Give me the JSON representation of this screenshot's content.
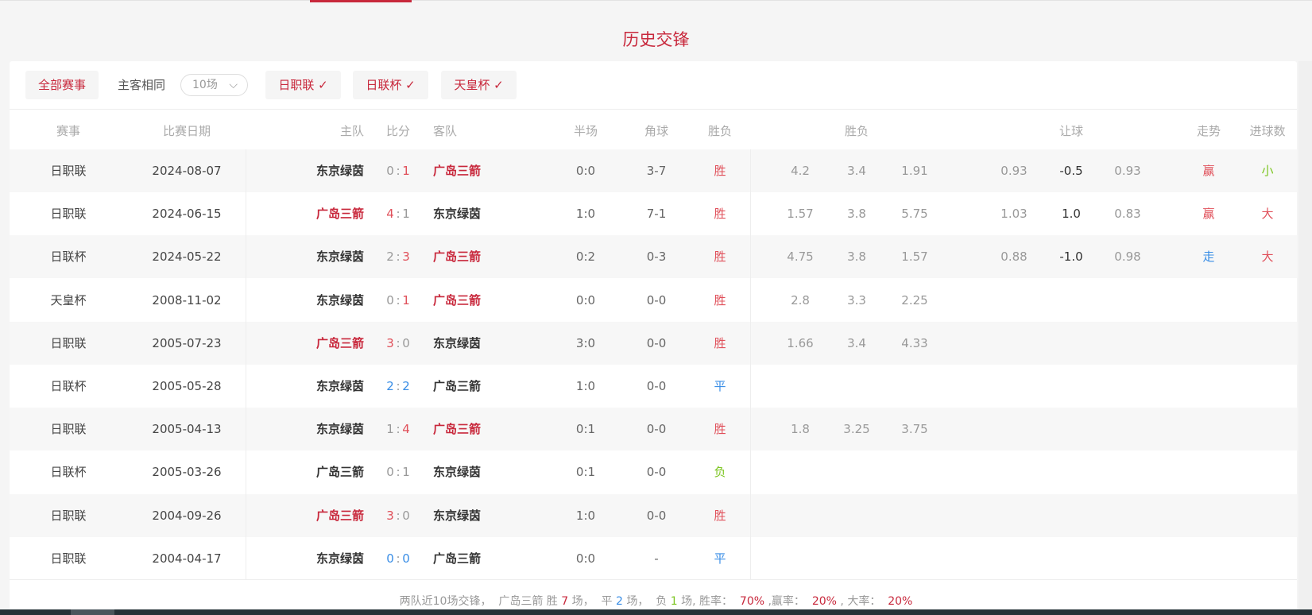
{
  "title": "历史交锋",
  "colors": {
    "red": "#c8283c",
    "win": "#e0505a",
    "blue": "#3a8ee6",
    "green": "#7cc520",
    "dark": "#333333",
    "gray": "#999999"
  },
  "filters": {
    "all": "全部赛事",
    "same_home_away": "主客相同",
    "count_select": "10场",
    "chips": [
      "日职联",
      "日联杯",
      "天皇杯"
    ],
    "check_icon": "✓",
    "chevron_icon": "⌵"
  },
  "headers": {
    "league": "赛事",
    "date": "比赛日期",
    "home": "主队",
    "score": "比分",
    "away": "客队",
    "half": "半场",
    "corner": "角球",
    "result": "胜负",
    "odds": "胜负",
    "handicap": "让球",
    "trend": "走势",
    "goals": "进球数"
  },
  "rows": [
    {
      "league": "日职联",
      "date": "2024-08-07",
      "home": "东京绿茵",
      "hs": "0",
      "as": "1",
      "away": "广岛三箭",
      "half": "0:0",
      "corner": "3-7",
      "res": "胜",
      "o1": "4.2",
      "o2": "3.4",
      "o3": "1.91",
      "h1": "0.93",
      "h2": "-0.5",
      "h3": "0.93",
      "trend": "赢",
      "goals": "小",
      "homeC": "dark",
      "awayC": "red",
      "hsC": "gray",
      "asC": "win",
      "resC": "win",
      "trendC": "win",
      "goalsC": "green"
    },
    {
      "league": "日职联",
      "date": "2024-06-15",
      "home": "广岛三箭",
      "hs": "4",
      "as": "1",
      "away": "东京绿茵",
      "half": "1:0",
      "corner": "7-1",
      "res": "胜",
      "o1": "1.57",
      "o2": "3.8",
      "o3": "5.75",
      "h1": "1.03",
      "h2": "1.0",
      "h3": "0.83",
      "trend": "赢",
      "goals": "大",
      "homeC": "red",
      "awayC": "dark",
      "hsC": "win",
      "asC": "gray",
      "resC": "win",
      "trendC": "win",
      "goalsC": "win"
    },
    {
      "league": "日联杯",
      "date": "2024-05-22",
      "home": "东京绿茵",
      "hs": "2",
      "as": "3",
      "away": "广岛三箭",
      "half": "0:2",
      "corner": "0-3",
      "res": "胜",
      "o1": "4.75",
      "o2": "3.8",
      "o3": "1.57",
      "h1": "0.88",
      "h2": "-1.0",
      "h3": "0.98",
      "trend": "走",
      "goals": "大",
      "homeC": "dark",
      "awayC": "red",
      "hsC": "gray",
      "asC": "win",
      "resC": "win",
      "trendC": "blue",
      "goalsC": "win"
    },
    {
      "league": "天皇杯",
      "date": "2008-11-02",
      "home": "东京绿茵",
      "hs": "0",
      "as": "1",
      "away": "广岛三箭",
      "half": "0:0",
      "corner": "0-0",
      "res": "胜",
      "o1": "2.8",
      "o2": "3.3",
      "o3": "2.25",
      "homeC": "dark",
      "awayC": "red",
      "hsC": "gray",
      "asC": "win",
      "resC": "win"
    },
    {
      "league": "日职联",
      "date": "2005-07-23",
      "home": "广岛三箭",
      "hs": "3",
      "as": "0",
      "away": "东京绿茵",
      "half": "3:0",
      "corner": "0-0",
      "res": "胜",
      "o1": "1.66",
      "o2": "3.4",
      "o3": "4.33",
      "homeC": "red",
      "awayC": "dark",
      "hsC": "win",
      "asC": "gray",
      "resC": "win"
    },
    {
      "league": "日联杯",
      "date": "2005-05-28",
      "home": "东京绿茵",
      "hs": "2",
      "as": "2",
      "away": "广岛三箭",
      "half": "1:0",
      "corner": "0-0",
      "res": "平",
      "homeC": "dark",
      "awayC": "dark",
      "hsC": "blue",
      "asC": "blue",
      "resC": "blue"
    },
    {
      "league": "日职联",
      "date": "2005-04-13",
      "home": "东京绿茵",
      "hs": "1",
      "as": "4",
      "away": "广岛三箭",
      "half": "0:1",
      "corner": "0-0",
      "res": "胜",
      "o1": "1.8",
      "o2": "3.25",
      "o3": "3.75",
      "homeC": "dark",
      "awayC": "red",
      "hsC": "gray",
      "asC": "win",
      "resC": "win"
    },
    {
      "league": "日联杯",
      "date": "2005-03-26",
      "home": "广岛三箭",
      "hs": "0",
      "as": "1",
      "away": "东京绿茵",
      "half": "0:1",
      "corner": "0-0",
      "res": "负",
      "homeC": "dark",
      "awayC": "dark",
      "hsC": "gray",
      "asC": "gray",
      "resC": "green"
    },
    {
      "league": "日职联",
      "date": "2004-09-26",
      "home": "广岛三箭",
      "hs": "3",
      "as": "0",
      "away": "东京绿茵",
      "half": "1:0",
      "corner": "0-0",
      "res": "胜",
      "homeC": "red",
      "awayC": "dark",
      "hsC": "win",
      "asC": "gray",
      "resC": "win"
    },
    {
      "league": "日职联",
      "date": "2004-04-17",
      "home": "东京绿茵",
      "hs": "0",
      "as": "0",
      "away": "广岛三箭",
      "half": "0:0",
      "corner": "-",
      "res": "平",
      "homeC": "dark",
      "awayC": "dark",
      "hsC": "blue",
      "asC": "blue",
      "resC": "blue"
    }
  ],
  "summary": {
    "p1": "两队近10场交锋，  广岛三箭 胜 ",
    "wins": "7",
    "p2": " 场，  平 ",
    "draws": "2",
    "p3": " 场，  负 ",
    "losses": "1",
    "p4": " 场, 胜率：  ",
    "win_rate": "70%",
    "p5": " ,赢率：  ",
    "handicap_rate": "20%",
    "p6": " , 大率：  ",
    "over_rate": "20%"
  }
}
